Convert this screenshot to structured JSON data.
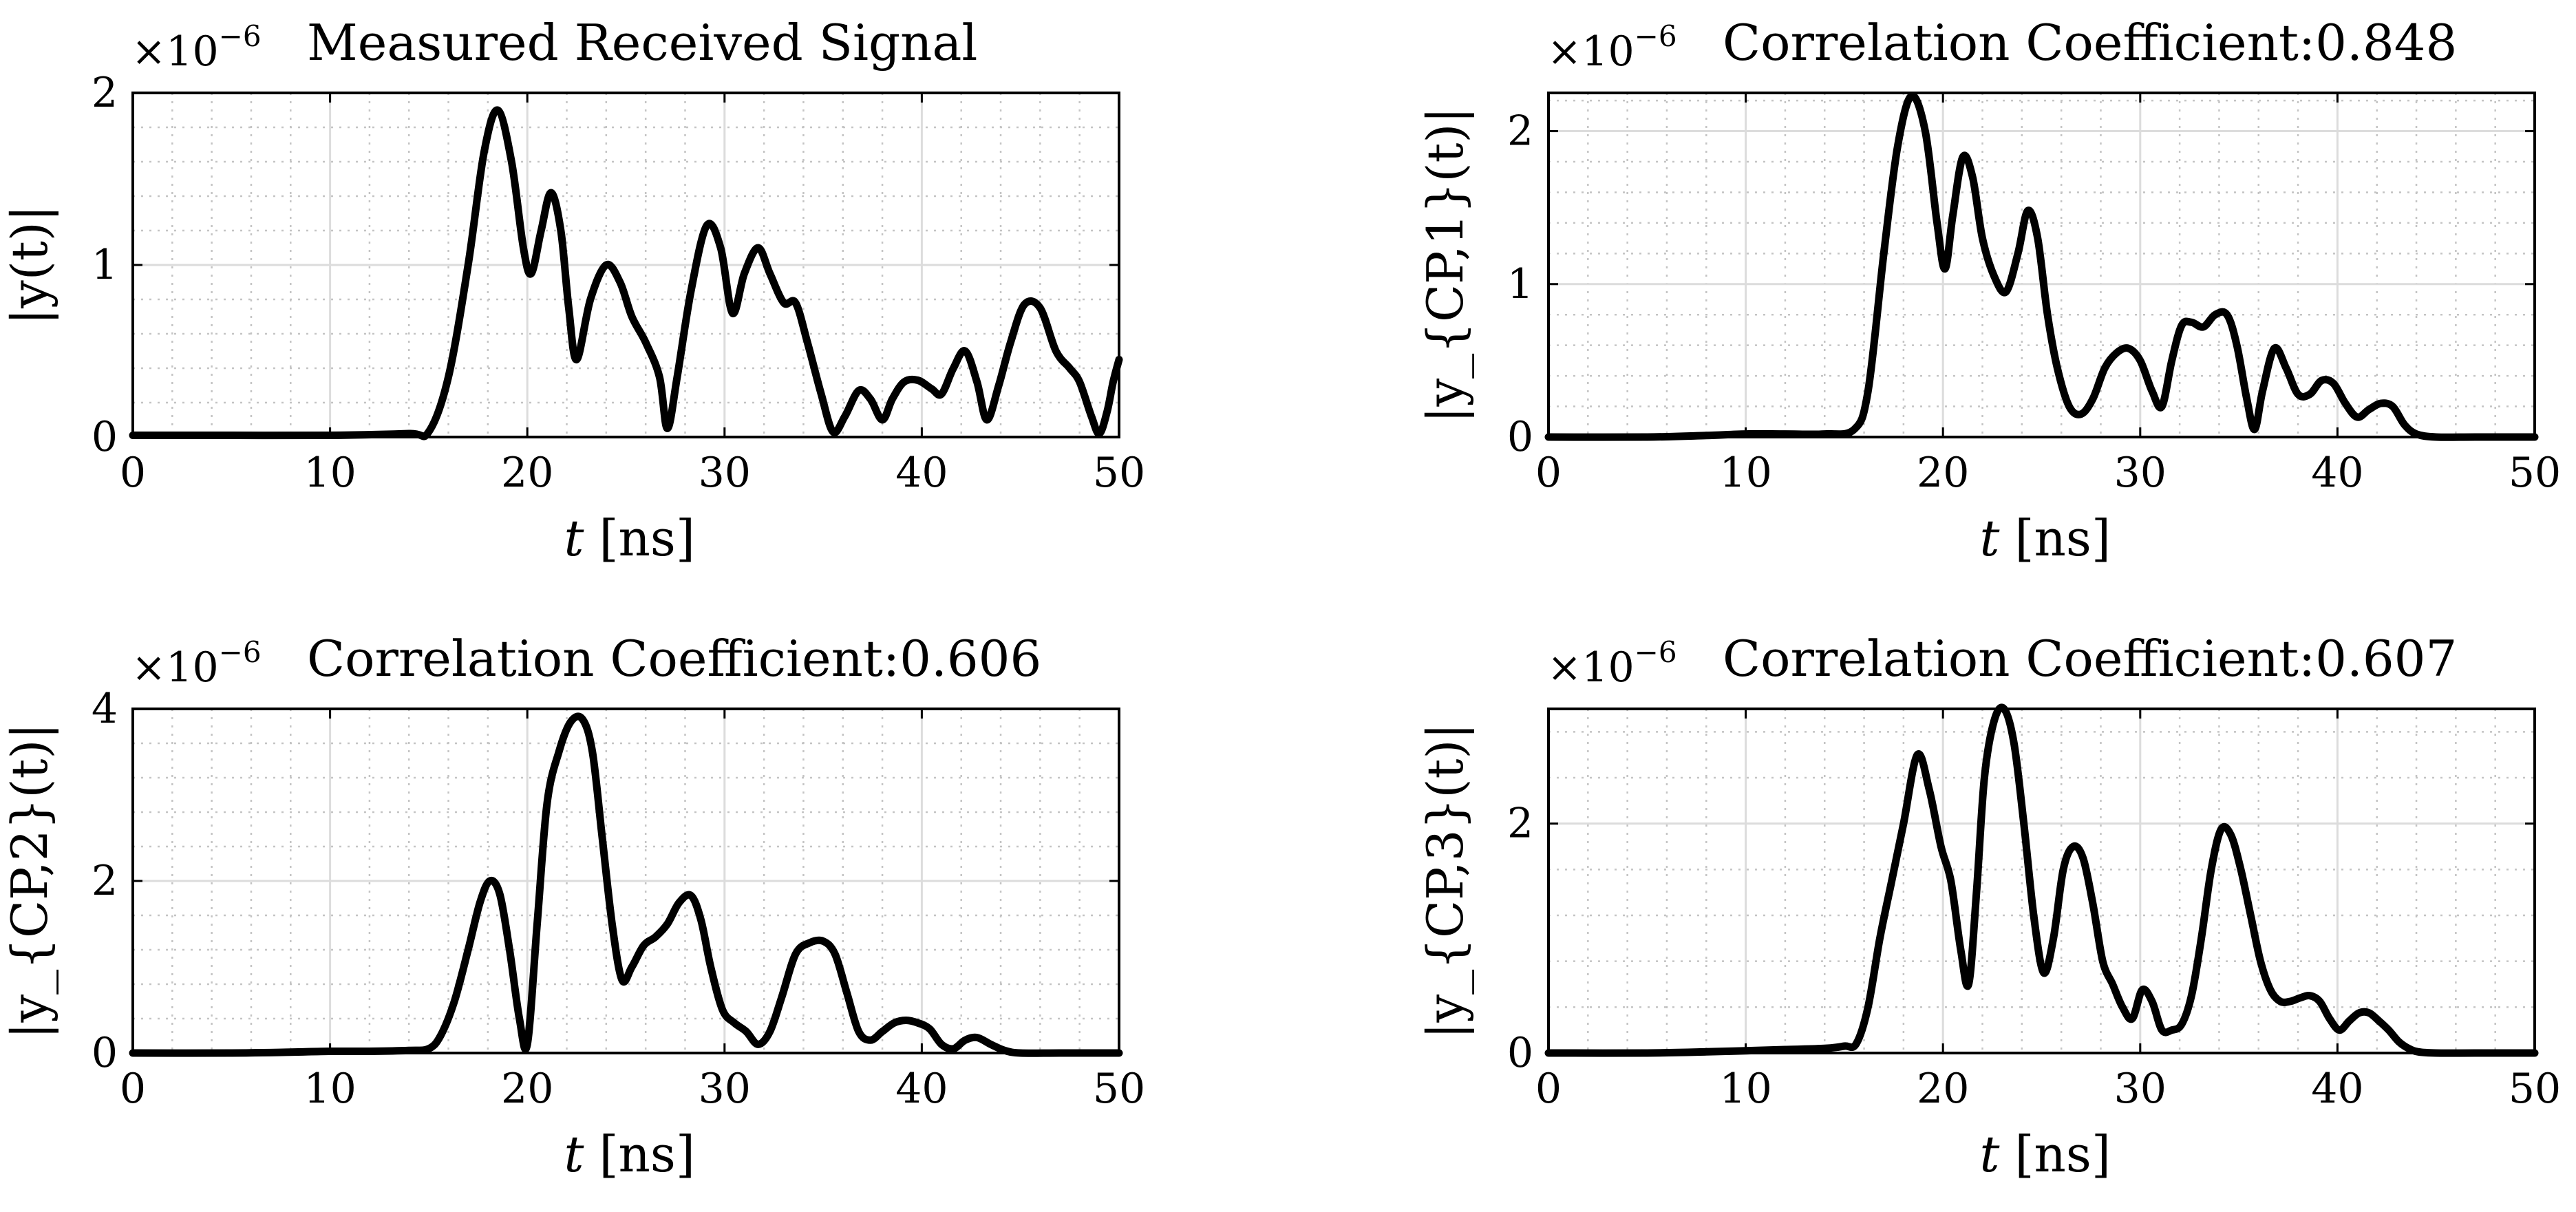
{
  "chart_data": [
    {
      "type": "line",
      "title": "Measured Received Signal",
      "exponent_label": "×10",
      "exponent_power": "−6",
      "xlabel_var": "t",
      "xlabel_unit": "[ns]",
      "ylabel": "|y(t)|",
      "xlim": [
        0,
        50
      ],
      "ylim": [
        0,
        2
      ],
      "xticks": [
        0,
        10,
        20,
        30,
        40,
        50
      ],
      "yticks": [
        0,
        1,
        2
      ],
      "grid": "major and minor",
      "series": [
        {
          "color": "#000000",
          "x": [
            0,
            5,
            10,
            14,
            15,
            16,
            17,
            17.8,
            18.5,
            19.2,
            19.8,
            20.2,
            20.7,
            21.2,
            21.7,
            22.1,
            22.5,
            23.2,
            24.0,
            24.7,
            25.3,
            26.0,
            26.7,
            27.1,
            27.6,
            28.3,
            29.1,
            29.8,
            30.4,
            31.0,
            31.7,
            32.3,
            33.0,
            33.6,
            34.2,
            34.9,
            35.5,
            36.1,
            36.8,
            37.4,
            38.0,
            38.5,
            39.1,
            39.8,
            40.5,
            41.0,
            41.6,
            42.2,
            42.8,
            43.3,
            43.9,
            44.5,
            45.2,
            46.0,
            46.8,
            47.5,
            48.0,
            48.6,
            49.0,
            49.4,
            49.7,
            50.0
          ],
          "y": [
            0.01,
            0.01,
            0.01,
            0.02,
            0.03,
            0.35,
            1.0,
            1.65,
            1.9,
            1.6,
            1.1,
            0.95,
            1.2,
            1.42,
            1.2,
            0.75,
            0.45,
            0.8,
            1.0,
            0.9,
            0.7,
            0.55,
            0.35,
            0.05,
            0.35,
            0.85,
            1.23,
            1.1,
            0.72,
            0.95,
            1.1,
            0.95,
            0.78,
            0.78,
            0.55,
            0.25,
            0.03,
            0.12,
            0.27,
            0.22,
            0.1,
            0.22,
            0.32,
            0.33,
            0.28,
            0.25,
            0.4,
            0.5,
            0.32,
            0.1,
            0.3,
            0.55,
            0.77,
            0.75,
            0.5,
            0.4,
            0.32,
            0.12,
            0.02,
            0.15,
            0.32,
            0.45
          ]
        }
      ]
    },
    {
      "type": "line",
      "title": "Correlation Coefficient:0.848",
      "exponent_label": "×10",
      "exponent_power": "−6",
      "xlabel_var": "t",
      "xlabel_unit": "[ns]",
      "ylabel": "|y_{CP,1}(t)|",
      "xlim": [
        0,
        50
      ],
      "ylim": [
        0,
        2.25
      ],
      "xticks": [
        0,
        10,
        20,
        30,
        40,
        50
      ],
      "yticks": [
        0,
        1,
        2
      ],
      "grid": "major and minor",
      "series": [
        {
          "color": "#000000",
          "x": [
            0,
            5,
            8,
            10,
            12,
            14,
            15.5,
            16.2,
            17.0,
            17.7,
            18.4,
            19.1,
            19.7,
            20.1,
            20.5,
            21.0,
            21.5,
            22.0,
            22.6,
            23.2,
            23.8,
            24.3,
            24.8,
            25.3,
            25.8,
            26.4,
            27.0,
            27.6,
            28.2,
            28.8,
            29.4,
            30.0,
            30.6,
            31.1,
            31.6,
            32.1,
            32.6,
            33.2,
            33.8,
            34.4,
            34.9,
            35.4,
            35.8,
            36.2,
            36.8,
            37.4,
            38.0,
            38.6,
            39.2,
            39.8,
            40.4,
            41.0,
            41.6,
            42.2,
            42.8,
            43.4,
            44.0,
            45.0,
            47.0,
            50.0
          ],
          "y": [
            0.0,
            0.0,
            0.01,
            0.02,
            0.02,
            0.02,
            0.05,
            0.3,
            1.2,
            1.9,
            2.23,
            2.0,
            1.4,
            1.1,
            1.45,
            1.83,
            1.7,
            1.3,
            1.05,
            0.95,
            1.2,
            1.48,
            1.3,
            0.8,
            0.45,
            0.2,
            0.15,
            0.25,
            0.45,
            0.55,
            0.58,
            0.5,
            0.3,
            0.2,
            0.5,
            0.73,
            0.75,
            0.72,
            0.8,
            0.8,
            0.6,
            0.25,
            0.05,
            0.3,
            0.58,
            0.45,
            0.28,
            0.28,
            0.37,
            0.35,
            0.22,
            0.13,
            0.18,
            0.22,
            0.2,
            0.08,
            0.02,
            0.0,
            0.0,
            0.0
          ]
        }
      ]
    },
    {
      "type": "line",
      "title": "Correlation Coefficient:0.606",
      "exponent_label": "×10",
      "exponent_power": "−6",
      "xlabel_var": "t",
      "xlabel_unit": "[ns]",
      "ylabel": "|y_{CP,2}(t)|",
      "xlim": [
        0,
        50
      ],
      "ylim": [
        0,
        4
      ],
      "xticks": [
        0,
        10,
        20,
        30,
        40,
        50
      ],
      "yticks": [
        0,
        2,
        4
      ],
      "grid": "major and minor",
      "series": [
        {
          "color": "#000000",
          "x": [
            0,
            5,
            8,
            10,
            12,
            14,
            15,
            15.6,
            16.3,
            17.0,
            17.6,
            18.1,
            18.6,
            19.1,
            19.6,
            20.0,
            20.5,
            21.0,
            21.6,
            22.2,
            22.8,
            23.3,
            23.8,
            24.3,
            24.8,
            25.3,
            25.9,
            26.5,
            27.1,
            27.7,
            28.3,
            28.8,
            29.3,
            29.9,
            30.5,
            31.1,
            31.7,
            32.3,
            32.9,
            33.6,
            34.3,
            35.0,
            35.6,
            36.2,
            36.8,
            37.4,
            38.0,
            38.6,
            39.2,
            39.8,
            40.4,
            41.0,
            41.6,
            42.2,
            42.8,
            43.5,
            44.2,
            45.0,
            47.0,
            50.0
          ],
          "y": [
            0.0,
            0.0,
            0.01,
            0.02,
            0.02,
            0.03,
            0.05,
            0.2,
            0.6,
            1.2,
            1.75,
            2.0,
            1.85,
            1.2,
            0.4,
            0.1,
            1.5,
            2.9,
            3.5,
            3.85,
            3.88,
            3.5,
            2.5,
            1.5,
            0.85,
            1.0,
            1.25,
            1.35,
            1.5,
            1.75,
            1.83,
            1.55,
            1.0,
            0.5,
            0.35,
            0.25,
            0.1,
            0.25,
            0.65,
            1.15,
            1.28,
            1.3,
            1.15,
            0.7,
            0.25,
            0.15,
            0.25,
            0.35,
            0.38,
            0.35,
            0.28,
            0.1,
            0.05,
            0.15,
            0.18,
            0.1,
            0.03,
            0.0,
            0.0,
            0.0
          ]
        }
      ]
    },
    {
      "type": "line",
      "title": "Correlation Coefficient:0.607",
      "exponent_label": "×10",
      "exponent_power": "−6",
      "xlabel_var": "t",
      "xlabel_unit": "[ns]",
      "ylabel": "|y_{CP,3}(t)|",
      "xlim": [
        0,
        50
      ],
      "ylim": [
        0,
        3
      ],
      "xticks": [
        0,
        10,
        20,
        30,
        40,
        50
      ],
      "yticks": [
        0,
        2
      ],
      "grid": "major and minor",
      "series": [
        {
          "color": "#000000",
          "x": [
            0,
            5,
            8,
            10,
            12,
            14,
            15.0,
            15.6,
            16.2,
            16.8,
            17.4,
            18.0,
            18.7,
            19.3,
            19.9,
            20.4,
            20.9,
            21.3,
            21.7,
            22.1,
            22.6,
            23.1,
            23.6,
            24.1,
            24.6,
            25.1,
            25.6,
            26.1,
            26.6,
            27.1,
            27.6,
            28.1,
            28.6,
            29.1,
            29.6,
            30.1,
            30.6,
            31.1,
            31.6,
            32.1,
            32.6,
            33.1,
            33.6,
            34.1,
            34.6,
            35.1,
            35.6,
            36.1,
            36.6,
            37.1,
            37.6,
            38.1,
            38.6,
            39.1,
            39.6,
            40.1,
            40.6,
            41.1,
            41.6,
            42.1,
            42.6,
            43.1,
            43.6,
            44.1,
            45.0,
            47.0,
            50.0
          ],
          "y": [
            0.0,
            0.0,
            0.01,
            0.02,
            0.03,
            0.04,
            0.06,
            0.08,
            0.4,
            1.0,
            1.5,
            2.0,
            2.6,
            2.3,
            1.8,
            1.5,
            0.9,
            0.6,
            1.4,
            2.4,
            2.9,
            3.0,
            2.7,
            2.0,
            1.2,
            0.7,
            1.0,
            1.6,
            1.8,
            1.7,
            1.3,
            0.8,
            0.6,
            0.4,
            0.3,
            0.55,
            0.45,
            0.2,
            0.2,
            0.25,
            0.5,
            1.0,
            1.6,
            1.95,
            1.9,
            1.6,
            1.2,
            0.8,
            0.55,
            0.45,
            0.45,
            0.48,
            0.5,
            0.45,
            0.3,
            0.2,
            0.28,
            0.35,
            0.35,
            0.28,
            0.2,
            0.1,
            0.04,
            0.01,
            0.0,
            0.0,
            0.0
          ]
        }
      ]
    }
  ]
}
